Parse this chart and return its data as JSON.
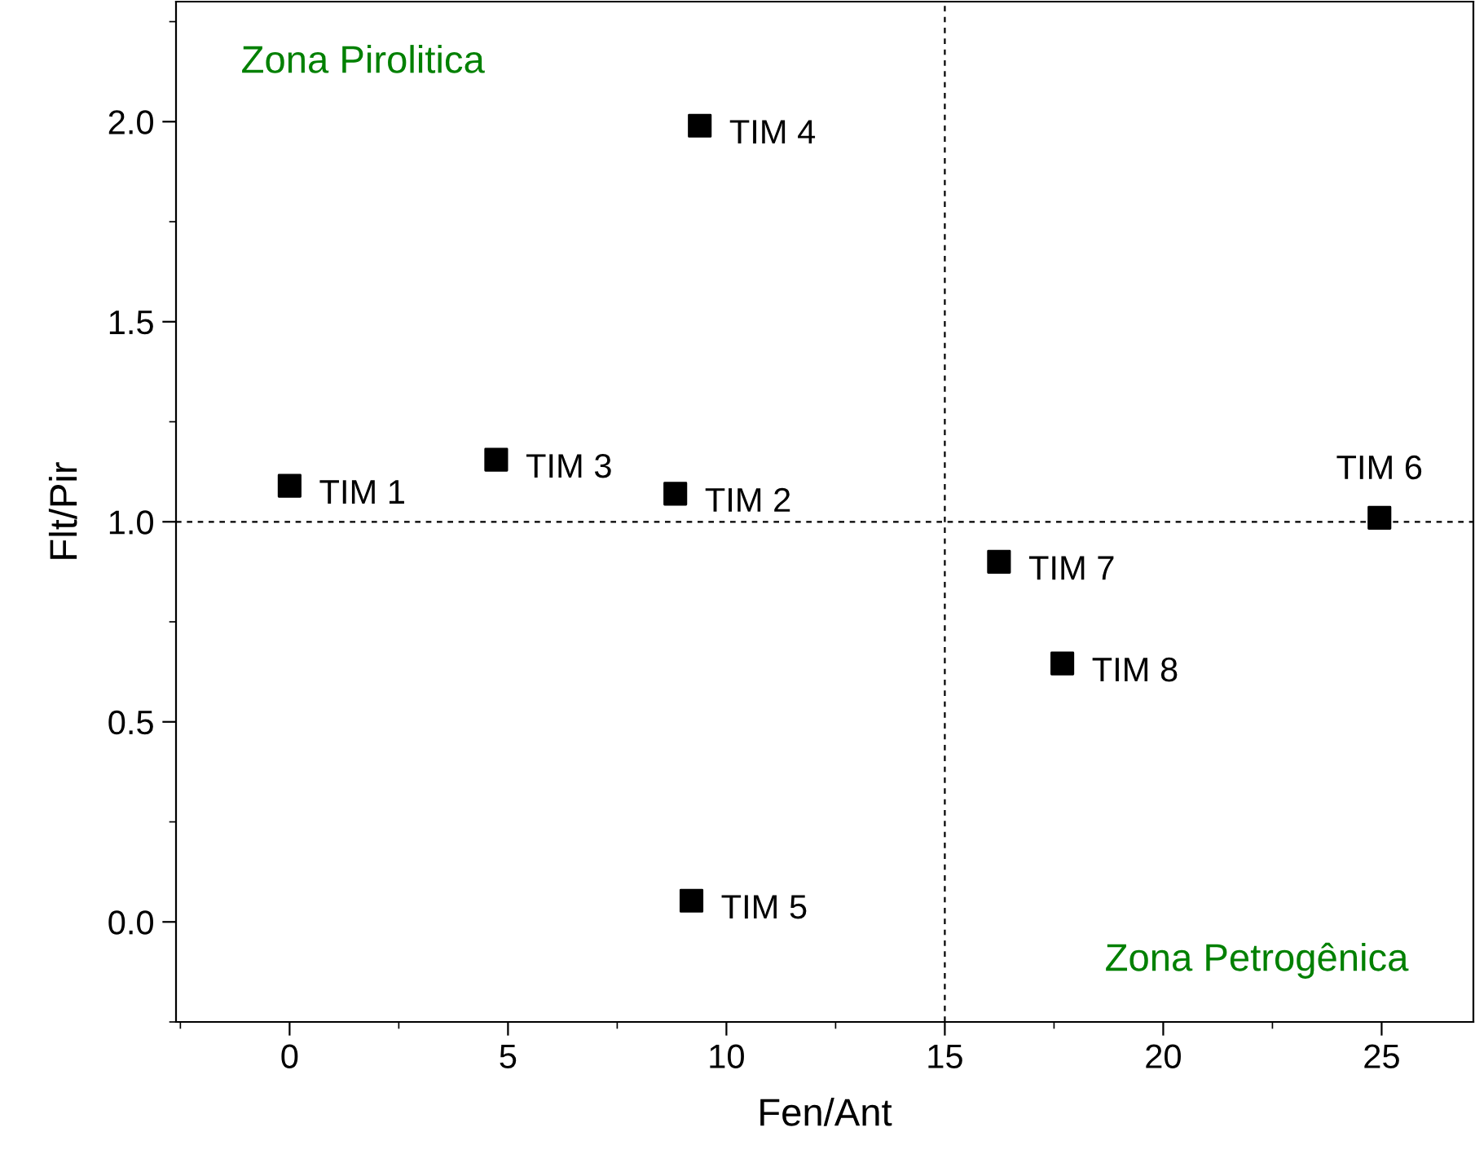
{
  "chart_data": {
    "type": "scatter",
    "xlabel": "Fen/Ant",
    "ylabel": "Flt/Pir",
    "x": [
      0,
      8.83,
      4.73,
      9.39,
      9.2,
      24.95,
      16.24,
      17.69
    ],
    "series": [
      {
        "color": "#000000",
        "values": [
          1.09,
          1.07,
          1.155,
          1.99,
          0.053,
          1.01,
          0.9,
          0.646
        ]
      }
    ],
    "marker": "square",
    "xlim": [
      -2.6,
      27.1
    ],
    "xticks": [
      0,
      5,
      10,
      15,
      20,
      25
    ],
    "ylim": [
      -0.25,
      2.3
    ],
    "yticks": [
      {
        "value": 0,
        "label": "0.0"
      },
      0.5,
      {
        "value": 1,
        "label": "1.0"
      },
      1.5,
      {
        "value": 2,
        "label": "2.0"
      }
    ],
    "ref_lines": [
      {
        "axis": "x",
        "value": 15,
        "color": "#000000",
        "line_style": "dashed"
      },
      {
        "axis": "y",
        "value": 1.0,
        "color": "#000000",
        "line_style": "dashed"
      }
    ],
    "annotations": [
      {
        "text": "TIM 1",
        "x": 0,
        "y": 1.09
      },
      {
        "text": "TIM 2",
        "x": 8.83,
        "y": 1.07
      },
      {
        "text": "TIM 3",
        "x": 4.73,
        "y": 1.155
      },
      {
        "text": "TIM 4",
        "x": 9.39,
        "y": 1.99
      },
      {
        "text": "TIM 5",
        "x": 9.2,
        "y": 0.053
      },
      {
        "text": "TIM 6",
        "x": 24.95,
        "y": 1.01
      },
      {
        "text": "TIM 7",
        "x": 16.24,
        "y": 0.9
      },
      {
        "text": "TIM 8",
        "x": 17.69,
        "y": 0.646
      },
      "Zona Pirolitica",
      "Zona Petrogênica"
    ],
    "grid": false,
    "legend": false
  }
}
